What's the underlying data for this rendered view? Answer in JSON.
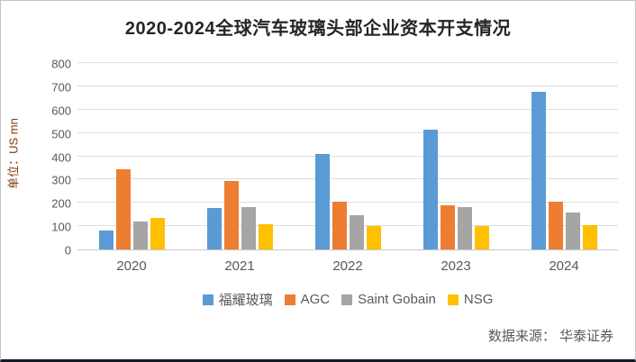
{
  "title": "2020-2024全球汽车玻璃头部企业资本开支情况",
  "y_axis_label": "单位：US mn",
  "source": "数据来源： 华泰证券",
  "colors": {
    "title_text": "#262626",
    "axis_text": "#595959",
    "y_axis_title_text": "#843C0C",
    "gridline": "#dedede",
    "bottom_edge": "#141b26"
  },
  "chart_data": {
    "type": "bar",
    "title": "2020-2024全球汽车玻璃头部企业资本开支情况",
    "ylabel": "单位：US mn",
    "categories": [
      "2020",
      "2021",
      "2022",
      "2023",
      "2024"
    ],
    "series": [
      {
        "name": "福耀玻璃",
        "color": "#5B9BD5",
        "values": [
          80,
          180,
          413,
          515,
          680
        ]
      },
      {
        "name": "AGC",
        "color": "#ED7D31",
        "values": [
          345,
          295,
          207,
          192,
          207
        ]
      },
      {
        "name": "Saint Gobain",
        "color": "#A5A5A5",
        "values": [
          122,
          182,
          148,
          182,
          158
        ]
      },
      {
        "name": "NSG",
        "color": "#FFC000",
        "values": [
          135,
          110,
          100,
          100,
          105
        ]
      }
    ],
    "ylim": [
      0,
      800
    ],
    "ytick_step": 100,
    "grid": true,
    "legend_position": "bottom"
  }
}
